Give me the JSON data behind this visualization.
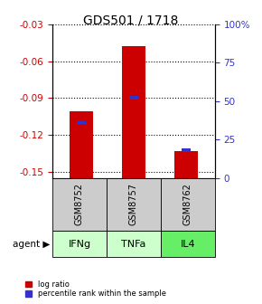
{
  "title": "GDS501 / 1718",
  "samples": [
    "GSM8752",
    "GSM8757",
    "GSM8762"
  ],
  "agents": [
    "IFNg",
    "TNFa",
    "IL4"
  ],
  "log_ratios": [
    -0.101,
    -0.048,
    -0.133
  ],
  "percentile_ranks": [
    0.36,
    0.52,
    0.18
  ],
  "ylim": [
    -0.155,
    -0.03
  ],
  "y_ticks": [
    -0.15,
    -0.12,
    -0.09,
    -0.06,
    -0.03
  ],
  "y_tick_labels": [
    "-0.15",
    "-0.12",
    "-0.09",
    "-0.06",
    "-0.03"
  ],
  "right_yticks": [
    0,
    25,
    50,
    75,
    100
  ],
  "right_ytick_labels": [
    "0",
    "25",
    "50",
    "75",
    "100%"
  ],
  "bar_width": 0.45,
  "red_color": "#cc0000",
  "blue_color": "#3333cc",
  "agent_colors": [
    "#ccffcc",
    "#ccffcc",
    "#66ee66"
  ],
  "sample_bg": "#cccccc",
  "legend_red": "log ratio",
  "legend_blue": "percentile rank within the sample",
  "title_fontsize": 10,
  "tick_fontsize": 7.5,
  "label_fontsize": 8
}
